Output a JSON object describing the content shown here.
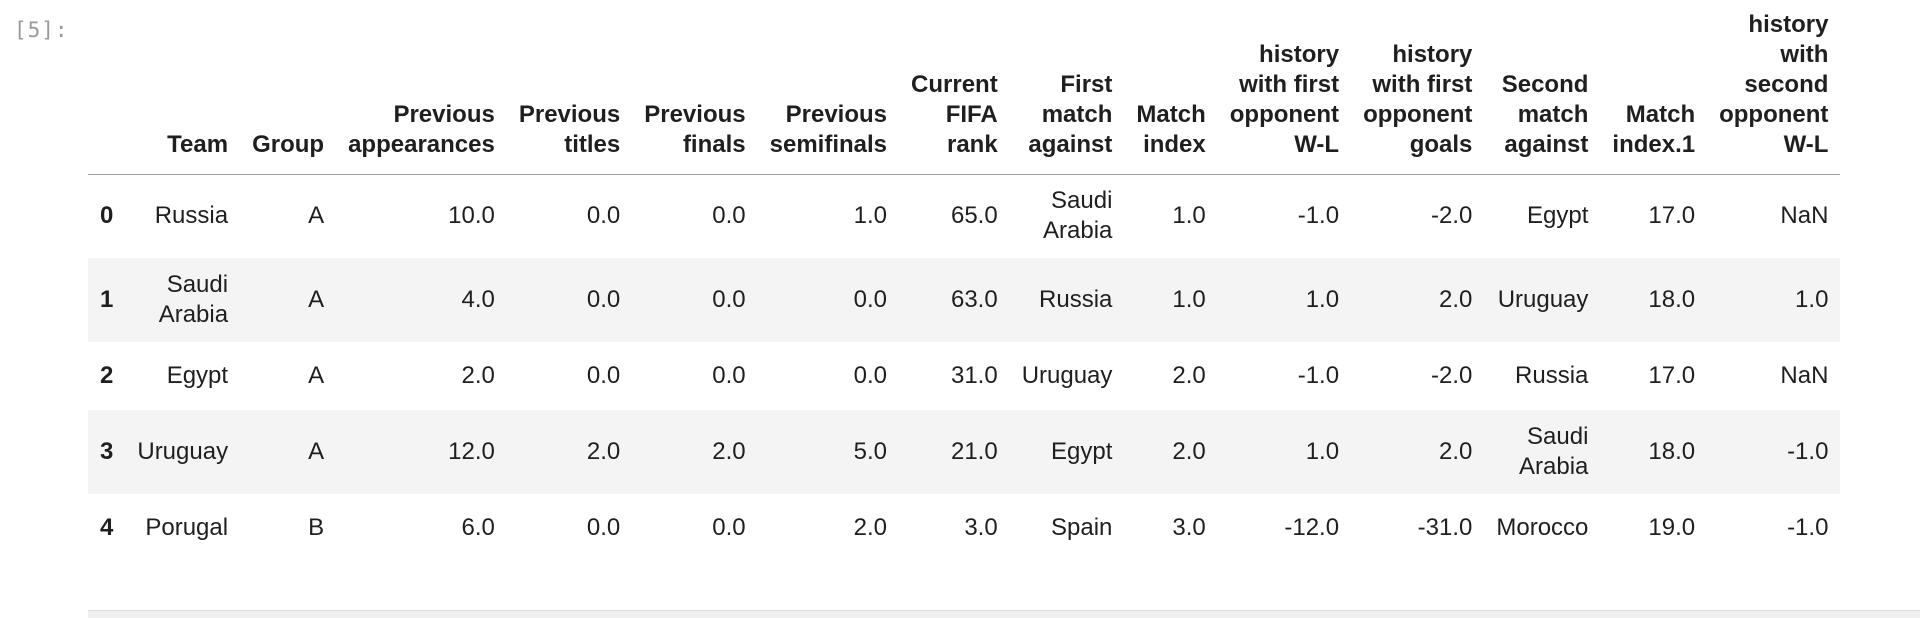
{
  "prompt": "[5]:",
  "table": {
    "index_header": "",
    "columns": [
      [
        "Team"
      ],
      [
        "Group"
      ],
      [
        "Previous",
        "appearances"
      ],
      [
        "Previous",
        "titles"
      ],
      [
        "Previous",
        "finals"
      ],
      [
        "Previous",
        "semifinals"
      ],
      [
        "Current",
        "FIFA",
        "rank"
      ],
      [
        "First",
        "match",
        "against"
      ],
      [
        "Match",
        "index"
      ],
      [
        "history",
        "with first",
        "opponent",
        "W-L"
      ],
      [
        "history",
        "with first",
        "opponent",
        "goals"
      ],
      [
        "Second",
        "match",
        "against"
      ],
      [
        "Match",
        "index.1"
      ],
      [
        "history",
        "with",
        "second",
        "opponent",
        "W-L"
      ]
    ],
    "rows": [
      {
        "index": "0",
        "cells": [
          [
            "Russia"
          ],
          [
            "A"
          ],
          [
            "10.0"
          ],
          [
            "0.0"
          ],
          [
            "0.0"
          ],
          [
            "1.0"
          ],
          [
            "65.0"
          ],
          [
            "Saudi",
            "Arabia"
          ],
          [
            "1.0"
          ],
          [
            "-1.0"
          ],
          [
            "-2.0"
          ],
          [
            "Egypt"
          ],
          [
            "17.0"
          ],
          [
            "NaN"
          ]
        ]
      },
      {
        "index": "1",
        "cells": [
          [
            "Saudi",
            "Arabia"
          ],
          [
            "A"
          ],
          [
            "4.0"
          ],
          [
            "0.0"
          ],
          [
            "0.0"
          ],
          [
            "0.0"
          ],
          [
            "63.0"
          ],
          [
            "Russia"
          ],
          [
            "1.0"
          ],
          [
            "1.0"
          ],
          [
            "2.0"
          ],
          [
            "Uruguay"
          ],
          [
            "18.0"
          ],
          [
            "1.0"
          ]
        ]
      },
      {
        "index": "2",
        "cells": [
          [
            "Egypt"
          ],
          [
            "A"
          ],
          [
            "2.0"
          ],
          [
            "0.0"
          ],
          [
            "0.0"
          ],
          [
            "0.0"
          ],
          [
            "31.0"
          ],
          [
            "Uruguay"
          ],
          [
            "2.0"
          ],
          [
            "-1.0"
          ],
          [
            "-2.0"
          ],
          [
            "Russia"
          ],
          [
            "17.0"
          ],
          [
            "NaN"
          ]
        ]
      },
      {
        "index": "3",
        "cells": [
          [
            "Uruguay"
          ],
          [
            "A"
          ],
          [
            "12.0"
          ],
          [
            "2.0"
          ],
          [
            "2.0"
          ],
          [
            "5.0"
          ],
          [
            "21.0"
          ],
          [
            "Egypt"
          ],
          [
            "2.0"
          ],
          [
            "1.0"
          ],
          [
            "2.0"
          ],
          [
            "Saudi",
            "Arabia"
          ],
          [
            "18.0"
          ],
          [
            "-1.0"
          ]
        ]
      },
      {
        "index": "4",
        "cells": [
          [
            "Porugal"
          ],
          [
            "B"
          ],
          [
            "6.0"
          ],
          [
            "0.0"
          ],
          [
            "0.0"
          ],
          [
            "2.0"
          ],
          [
            "3.0"
          ],
          [
            "Spain"
          ],
          [
            "3.0"
          ],
          [
            "-12.0"
          ],
          [
            "-31.0"
          ],
          [
            "Morocco"
          ],
          [
            "19.0"
          ],
          [
            "-1.0"
          ]
        ]
      }
    ]
  }
}
